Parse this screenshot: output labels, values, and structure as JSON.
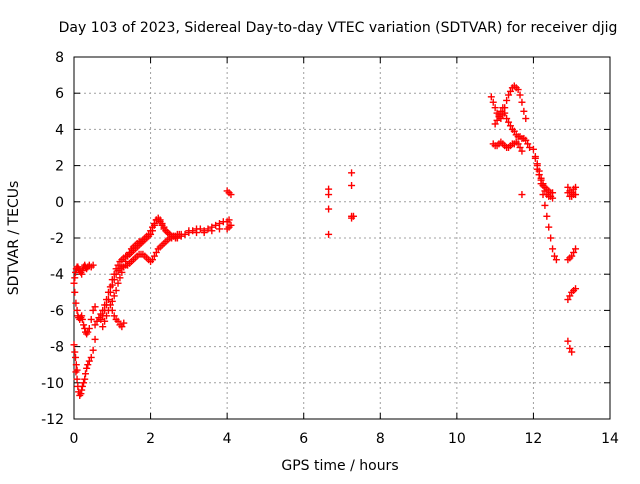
{
  "chart_data": {
    "type": "scatter",
    "title": "Day 103 of 2023, Sidereal Day-to-day VTEC variation (SDTVAR) for receiver djig",
    "xlabel": "GPS time / hours",
    "ylabel": "SDTVAR / TECUs",
    "xlim": [
      0,
      14
    ],
    "ylim": [
      -12,
      8
    ],
    "xticks": [
      "0",
      "2",
      "4",
      "6",
      "8",
      "10",
      "12",
      "14"
    ],
    "yticks": [
      "-12",
      "-10",
      "-8",
      "-6",
      "-4",
      "-2",
      "0",
      "2",
      "4",
      "6",
      "8"
    ],
    "grid": true,
    "marker": "+",
    "color": "#ff0000",
    "series": [
      {
        "name": "SDTVAR",
        "x": [
          0.0,
          0.02,
          0.04,
          0.06,
          0.08,
          0.1,
          0.12,
          0.15,
          0.18,
          0.2,
          0.22,
          0.25,
          0.28,
          0.3,
          0.33,
          0.36,
          0.4,
          0.45,
          0.5,
          0.02,
          0.05,
          0.08,
          0.1,
          0.12,
          0.15,
          0.18,
          0.2,
          0.22,
          0.25,
          0.28,
          0.3,
          0.33,
          0.36,
          0.4,
          0.45,
          0.5,
          0.55,
          0.05,
          0.08,
          0.1,
          0.12,
          0.15,
          0.18,
          0.2,
          0.22,
          0.25,
          0.28,
          0.3,
          0.33,
          0.36,
          0.4,
          0.45,
          0.5,
          0.55,
          0.0,
          0.02,
          0.04,
          0.06,
          0.08,
          0.55,
          0.6,
          0.65,
          0.7,
          0.75,
          0.8,
          0.85,
          0.9,
          0.95,
          1.0,
          1.05,
          1.1,
          1.15,
          1.2,
          1.25,
          1.3,
          1.35,
          1.4,
          1.45,
          1.5,
          1.55,
          1.6,
          1.65,
          1.7,
          1.75,
          1.8,
          1.85,
          1.9,
          1.95,
          2.0,
          2.05,
          2.1,
          2.15,
          2.2,
          2.25,
          2.3,
          2.35,
          2.4,
          2.45,
          2.5,
          2.55,
          2.6,
          2.65,
          2.7,
          0.7,
          0.75,
          0.8,
          0.85,
          0.9,
          0.95,
          1.0,
          1.05,
          1.1,
          1.15,
          1.2,
          1.25,
          1.3,
          1.35,
          1.4,
          1.45,
          1.5,
          1.55,
          1.6,
          1.65,
          1.7,
          1.75,
          1.8,
          1.85,
          1.9,
          1.95,
          2.0,
          2.05,
          2.1,
          2.15,
          2.2,
          2.25,
          2.3,
          2.35,
          2.4,
          2.45,
          2.5,
          2.55,
          2.6,
          2.65,
          2.7,
          2.75,
          2.8,
          0.75,
          0.8,
          0.85,
          0.9,
          0.95,
          1.0,
          1.05,
          1.1,
          1.15,
          1.2,
          1.25,
          1.3,
          1.35,
          1.4,
          1.45,
          1.5,
          1.55,
          1.6,
          1.65,
          1.7,
          1.75,
          1.8,
          1.85,
          1.9,
          1.95,
          2.0,
          2.05,
          2.1,
          2.15,
          2.2,
          2.25,
          2.3,
          2.35,
          2.4,
          2.45,
          2.5,
          1.0,
          1.05,
          1.1,
          1.15,
          1.2,
          1.25,
          1.3,
          2.7,
          2.8,
          2.9,
          3.0,
          3.1,
          3.2,
          3.3,
          3.4,
          3.5,
          3.6,
          3.7,
          3.8,
          3.9,
          4.0,
          4.05,
          3.0,
          3.2,
          3.4,
          3.6,
          3.8,
          4.0,
          4.05,
          4.1,
          4.0,
          4.05,
          4.1,
          6.65,
          6.65,
          6.65,
          6.65,
          7.25,
          7.25,
          7.25,
          7.25,
          7.3,
          10.9,
          10.95,
          11.0,
          11.05,
          11.1,
          11.15,
          11.2,
          11.25,
          11.3,
          11.35,
          11.4,
          11.45,
          11.5,
          11.55,
          11.6,
          11.65,
          11.7,
          11.75,
          11.8,
          11.0,
          11.05,
          11.1,
          11.15,
          11.2,
          11.25,
          11.3,
          11.35,
          11.4,
          11.45,
          11.5,
          11.55,
          11.6,
          11.65,
          11.7,
          11.75,
          11.8,
          11.85,
          11.9,
          10.95,
          11.0,
          11.05,
          11.1,
          11.15,
          11.2,
          11.25,
          11.3,
          11.35,
          11.4,
          11.45,
          11.5,
          11.55,
          11.6,
          11.65,
          11.7,
          11.7,
          12.0,
          12.05,
          12.1,
          12.15,
          12.2,
          12.25,
          12.3,
          12.35,
          12.4,
          12.45,
          12.5,
          12.05,
          12.1,
          12.15,
          12.2,
          12.25,
          12.3,
          12.35,
          12.4,
          12.45,
          12.5,
          12.55,
          12.6,
          12.1,
          12.15,
          12.2,
          12.25,
          12.3,
          12.35,
          12.4,
          12.45,
          12.5,
          12.9,
          12.95,
          13.0,
          13.05,
          13.1,
          12.9,
          12.95,
          13.0,
          13.05,
          13.1,
          12.9,
          12.95,
          13.0,
          13.05,
          13.1,
          12.9,
          12.95,
          13.0,
          13.05,
          13.1,
          12.9,
          12.95,
          13.0
        ],
        "y": [
          -4.5,
          -4.2,
          -3.9,
          -3.7,
          -3.6,
          -3.6,
          -3.7,
          -3.8,
          -3.9,
          -4.0,
          -3.8,
          -3.6,
          -3.5,
          -3.6,
          -3.7,
          -3.6,
          -3.5,
          -3.6,
          -3.5,
          -5.0,
          -5.6,
          -6.0,
          -6.3,
          -6.4,
          -6.5,
          -6.4,
          -6.3,
          -6.5,
          -6.8,
          -7.0,
          -7.2,
          -7.3,
          -7.2,
          -7.0,
          -6.5,
          -6.0,
          -5.8,
          -9.4,
          -9.8,
          -10.2,
          -10.5,
          -10.7,
          -10.6,
          -10.4,
          -10.2,
          -10.0,
          -9.8,
          -9.5,
          -9.2,
          -9.0,
          -8.8,
          -8.6,
          -8.2,
          -7.6,
          -7.9,
          -8.3,
          -8.6,
          -9.0,
          -9.3,
          -6.8,
          -6.6,
          -6.4,
          -6.2,
          -6.0,
          -5.7,
          -5.4,
          -5.0,
          -4.7,
          -4.3,
          -4.0,
          -3.7,
          -3.5,
          -3.3,
          -3.2,
          -3.1,
          -3.0,
          -3.0,
          -2.9,
          -2.8,
          -2.7,
          -2.6,
          -2.5,
          -2.4,
          -2.3,
          -2.2,
          -2.1,
          -2.0,
          -1.9,
          -1.8,
          -1.6,
          -1.3,
          -1.0,
          -1.0,
          -1.1,
          -1.3,
          -1.5,
          -1.6,
          -1.7,
          -1.8,
          -1.9,
          -1.9,
          -2.0,
          -2.0,
          -6.5,
          -6.3,
          -6.0,
          -5.7,
          -5.4,
          -5.0,
          -4.6,
          -4.3,
          -4.0,
          -3.8,
          -3.7,
          -3.6,
          -3.6,
          -3.5,
          -3.5,
          -3.4,
          -3.3,
          -3.2,
          -3.1,
          -3.0,
          -2.9,
          -2.9,
          -2.9,
          -3.0,
          -3.1,
          -3.2,
          -3.3,
          -3.2,
          -3.0,
          -2.8,
          -2.6,
          -2.5,
          -2.4,
          -2.3,
          -2.2,
          -2.1,
          -2.0,
          -2.0,
          -1.9,
          -1.9,
          -1.8,
          -1.8,
          -1.8,
          -6.9,
          -6.6,
          -6.3,
          -6.0,
          -5.7,
          -5.5,
          -5.2,
          -4.9,
          -4.5,
          -4.2,
          -3.9,
          -3.6,
          -3.3,
          -3.0,
          -2.8,
          -2.6,
          -2.5,
          -2.4,
          -2.3,
          -2.2,
          -2.2,
          -2.1,
          -2.0,
          -1.9,
          -1.8,
          -1.6,
          -1.4,
          -1.2,
          -1.0,
          -0.9,
          -1.0,
          -1.2,
          -1.4,
          -1.6,
          -1.7,
          -1.8,
          -6.0,
          -6.3,
          -6.5,
          -6.6,
          -6.8,
          -6.9,
          -6.7,
          -2.0,
          -1.9,
          -1.8,
          -1.7,
          -1.6,
          -1.5,
          -1.5,
          -1.6,
          -1.5,
          -1.4,
          -1.3,
          -1.2,
          -1.1,
          -1.1,
          -1.0,
          -1.6,
          -1.7,
          -1.7,
          -1.6,
          -1.5,
          -1.5,
          -1.4,
          -1.3,
          0.6,
          0.5,
          0.4,
          0.7,
          0.4,
          -0.4,
          -1.8,
          1.6,
          0.9,
          -0.8,
          -0.9,
          -0.8,
          5.8,
          5.5,
          5.2,
          4.9,
          4.7,
          4.6,
          4.8,
          5.2,
          5.6,
          5.9,
          6.1,
          6.3,
          6.4,
          6.3,
          6.2,
          5.9,
          5.5,
          5.0,
          4.6,
          4.3,
          4.5,
          4.8,
          5.0,
          5.2,
          4.9,
          4.6,
          4.4,
          4.2,
          4.0,
          3.9,
          3.7,
          3.6,
          3.6,
          3.5,
          3.5,
          3.4,
          3.2,
          3.0,
          3.2,
          3.1,
          3.1,
          3.2,
          3.3,
          3.2,
          3.1,
          3.0,
          3.0,
          3.1,
          3.2,
          3.2,
          3.3,
          3.2,
          3.0,
          2.8,
          0.4,
          2.9,
          2.5,
          2.1,
          1.7,
          1.3,
          0.9,
          0.6,
          0.4,
          0.3,
          0.3,
          0.2,
          2.4,
          2.0,
          1.5,
          1.0,
          0.4,
          -0.2,
          -0.8,
          -1.4,
          -2.0,
          -2.6,
          -3.0,
          -3.2,
          1.8,
          1.5,
          1.2,
          1.0,
          0.8,
          0.7,
          0.6,
          0.5,
          0.5,
          0.8,
          0.6,
          0.5,
          0.7,
          0.8,
          0.5,
          0.3,
          0.3,
          0.4,
          0.4,
          -3.2,
          -3.1,
          -3.0,
          -2.8,
          -2.6,
          -5.4,
          -5.2,
          -5.0,
          -4.9,
          -4.8,
          -7.7,
          -8.1,
          -8.3
        ]
      }
    ]
  }
}
